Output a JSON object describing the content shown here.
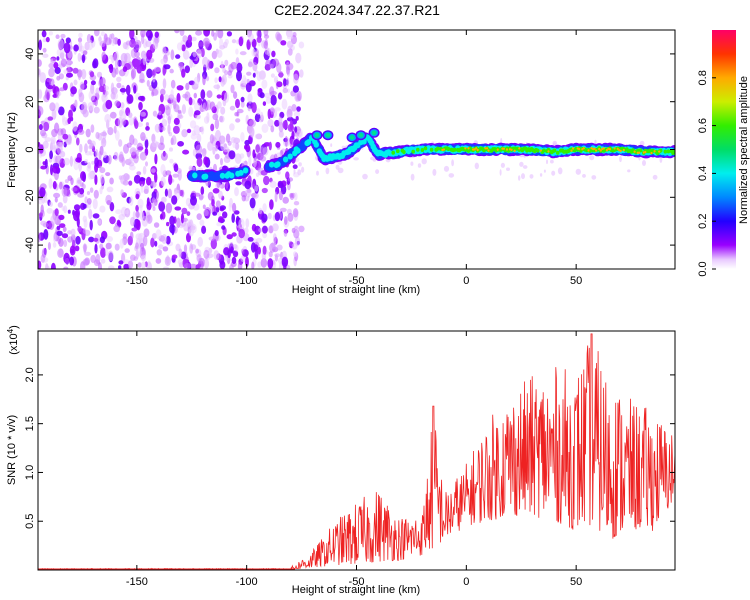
{
  "chart_data": [
    {
      "type": "heatmap",
      "title": "C2E2.2024.347.22.37.R21",
      "xlabel": "Height of straight line (km)",
      "ylabel": "Frequency (Hz)",
      "xlim": [
        -195,
        95
      ],
      "ylim": [
        -50,
        50
      ],
      "xticks": [
        -150,
        -100,
        -50,
        0,
        50
      ],
      "yticks": [
        -40,
        -20,
        0,
        20,
        40
      ],
      "noise_region_x": [
        -195,
        -77
      ],
      "signal_track": [
        {
          "x": -125,
          "freq": -11,
          "amp": 0.3
        },
        {
          "x": -110,
          "freq": -11,
          "amp": 0.35
        },
        {
          "x": -85,
          "freq": -6,
          "amp": 0.35
        },
        {
          "x": -70,
          "freq": 5,
          "amp": 0.4
        },
        {
          "x": -65,
          "freq": -4,
          "amp": 0.45
        },
        {
          "x": -55,
          "freq": -2,
          "amp": 0.45
        },
        {
          "x": -45,
          "freq": 5,
          "amp": 0.45
        },
        {
          "x": -40,
          "freq": -2,
          "amp": 0.45
        },
        {
          "x": -30,
          "freq": -1,
          "amp": 0.5
        },
        {
          "x": -20,
          "freq": 0,
          "amp": 0.6
        },
        {
          "x": -10,
          "freq": 0,
          "amp": 0.65
        },
        {
          "x": 0,
          "freq": 0,
          "amp": 0.75
        },
        {
          "x": 10,
          "freq": 0,
          "amp": 0.8
        },
        {
          "x": 20,
          "freq": 0,
          "amp": 0.75
        },
        {
          "x": 30,
          "freq": 0,
          "amp": 0.7
        },
        {
          "x": 40,
          "freq": -1,
          "amp": 0.65
        },
        {
          "x": 50,
          "freq": 0,
          "amp": 0.85
        },
        {
          "x": 60,
          "freq": 0,
          "amp": 0.85
        },
        {
          "x": 70,
          "freq": 0,
          "amp": 0.8
        },
        {
          "x": 80,
          "freq": -1,
          "amp": 0.7
        },
        {
          "x": 90,
          "freq": -1,
          "amp": 0.65
        }
      ],
      "colorbar": {
        "label": "Normalized spectral amplitude",
        "range": [
          0.0,
          1.0
        ],
        "ticks": [
          "0.0",
          "0.2",
          "0.4",
          "0.6",
          "0.8"
        ]
      }
    },
    {
      "type": "line",
      "xlabel": "Height of straight line (km)",
      "ylabel": "SNR (10 * v/v)",
      "y_multiplier": "(x10",
      "y_multiplier_exp": "4",
      "y_multiplier_close": ")",
      "xlim": [
        -195,
        95
      ],
      "ylim": [
        0,
        2.45
      ],
      "xticks": [
        -150,
        -100,
        -50,
        0,
        50
      ],
      "yticks": [
        "0.5",
        "1.0",
        "1.5",
        "2.0"
      ],
      "envelope": [
        {
          "x": -195,
          "min": 0.0,
          "max": 0.03
        },
        {
          "x": -80,
          "min": 0.0,
          "max": 0.03
        },
        {
          "x": -70,
          "min": 0.02,
          "max": 0.2
        },
        {
          "x": -60,
          "min": 0.05,
          "max": 0.5
        },
        {
          "x": -50,
          "min": 0.05,
          "max": 0.7
        },
        {
          "x": -40,
          "min": 0.08,
          "max": 0.85
        },
        {
          "x": -30,
          "min": 0.1,
          "max": 0.55
        },
        {
          "x": -20,
          "min": 0.15,
          "max": 0.6
        },
        {
          "x": -15,
          "min": 0.2,
          "max": 1.68
        },
        {
          "x": -10,
          "min": 0.3,
          "max": 0.8
        },
        {
          "x": 0,
          "min": 0.45,
          "max": 1.1
        },
        {
          "x": 10,
          "min": 0.5,
          "max": 1.55
        },
        {
          "x": 20,
          "min": 0.55,
          "max": 1.85
        },
        {
          "x": 30,
          "min": 0.55,
          "max": 2.0
        },
        {
          "x": 40,
          "min": 0.5,
          "max": 2.1
        },
        {
          "x": 50,
          "min": 0.4,
          "max": 2.05
        },
        {
          "x": 57,
          "min": 0.45,
          "max": 2.42
        },
        {
          "x": 65,
          "min": 0.3,
          "max": 2.0
        },
        {
          "x": 75,
          "min": 0.4,
          "max": 1.75
        },
        {
          "x": 85,
          "min": 0.4,
          "max": 1.65
        },
        {
          "x": 95,
          "min": 0.7,
          "max": 1.4
        }
      ],
      "line_color": "#ee2222"
    }
  ]
}
